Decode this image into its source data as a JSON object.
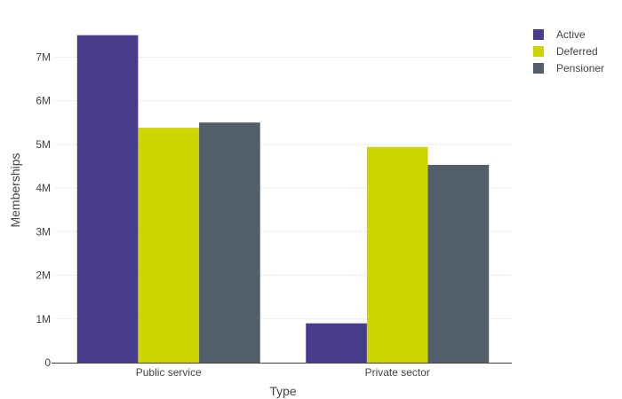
{
  "chart_data": {
    "type": "bar",
    "categories": [
      "Public service",
      "Private sector"
    ],
    "series": [
      {
        "name": "Active",
        "values": [
          7500000,
          900000
        ],
        "color": "#483d8b"
      },
      {
        "name": "Deferred",
        "values": [
          5380000,
          4940000
        ],
        "color": "#cdd400"
      },
      {
        "name": "Pensioner",
        "values": [
          5500000,
          4530000
        ],
        "color": "#525e69"
      }
    ],
    "title": "",
    "xlabel": "Type",
    "ylabel": "Memberships",
    "ylim": [
      0,
      7900000
    ],
    "yticks": [
      0,
      1000000,
      2000000,
      3000000,
      4000000,
      5000000,
      6000000,
      7000000
    ],
    "ytick_labels": [
      "0",
      "1M",
      "2M",
      "3M",
      "4M",
      "5M",
      "6M",
      "7M"
    ],
    "grid": true,
    "legend_position": "top-right",
    "colors": {
      "grid": "#eeeeee",
      "axis": "#444444",
      "text": "#444444"
    }
  }
}
